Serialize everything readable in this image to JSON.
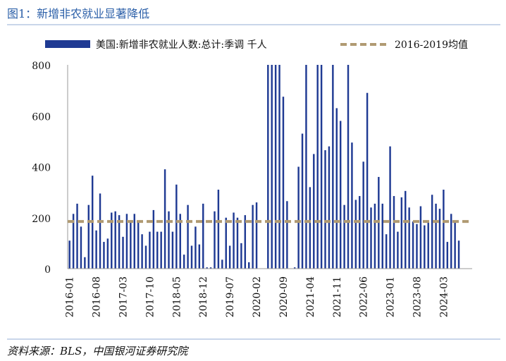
{
  "header": {
    "title": "图1：新增非农就业显著降低"
  },
  "footer": {
    "source": "资料来源：BLS，中国银河证券研究院"
  },
  "colors": {
    "bar": "#1f3a93",
    "avg": "#b09a72",
    "axis": "#999999",
    "title": "#2b5fa8"
  },
  "chart_data": {
    "type": "bar",
    "legend": {
      "placement": "top",
      "bar_label": "美国:新增非农就业人数:总计:季调 千人",
      "line_label": "2016-2019均值"
    },
    "ylim": [
      0,
      800
    ],
    "yticks": [
      0,
      200,
      400,
      600,
      800
    ],
    "xtick_labels": [
      "2016-01",
      "2016-08",
      "2017-03",
      "2017-10",
      "2018-05",
      "2018-12",
      "2019-07",
      "2020-02",
      "2020-09",
      "2021-04",
      "2021-11",
      "2022-06",
      "2023-01",
      "2023-08",
      "2024-03"
    ],
    "average": 185,
    "categories": [
      "2016-01",
      "2016-02",
      "2016-03",
      "2016-04",
      "2016-05",
      "2016-06",
      "2016-07",
      "2016-08",
      "2016-09",
      "2016-10",
      "2016-11",
      "2016-12",
      "2017-01",
      "2017-02",
      "2017-03",
      "2017-04",
      "2017-05",
      "2017-06",
      "2017-07",
      "2017-08",
      "2017-09",
      "2017-10",
      "2017-11",
      "2017-12",
      "2018-01",
      "2018-02",
      "2018-03",
      "2018-04",
      "2018-05",
      "2018-06",
      "2018-07",
      "2018-08",
      "2018-09",
      "2018-10",
      "2018-11",
      "2018-12",
      "2019-01",
      "2019-02",
      "2019-03",
      "2019-04",
      "2019-05",
      "2019-06",
      "2019-07",
      "2019-08",
      "2019-09",
      "2019-10",
      "2019-11",
      "2019-12",
      "2020-01",
      "2020-02",
      "2020-03",
      "2020-04",
      "2020-05",
      "2020-06",
      "2020-07",
      "2020-08",
      "2020-09",
      "2020-10",
      "2020-11",
      "2020-12",
      "2021-01",
      "2021-02",
      "2021-03",
      "2021-04",
      "2021-05",
      "2021-06",
      "2021-07",
      "2021-08",
      "2021-09",
      "2021-10",
      "2021-11",
      "2021-12",
      "2022-01",
      "2022-02",
      "2022-03",
      "2022-04",
      "2022-05",
      "2022-06",
      "2022-07",
      "2022-08",
      "2022-09",
      "2022-10",
      "2022-11",
      "2022-12",
      "2023-01",
      "2023-02",
      "2023-03",
      "2023-04",
      "2023-05",
      "2023-06",
      "2023-07",
      "2023-08",
      "2023-09",
      "2023-10",
      "2023-11",
      "2023-12",
      "2024-01",
      "2024-02",
      "2024-03",
      "2024-04",
      "2024-05",
      "2024-06",
      "2024-07",
      "2024-08",
      "2024-09",
      "2024-10"
    ],
    "values": [
      110,
      215,
      255,
      165,
      45,
      250,
      365,
      150,
      295,
      105,
      118,
      220,
      225,
      210,
      125,
      215,
      190,
      215,
      180,
      135,
      90,
      145,
      230,
      145,
      145,
      390,
      225,
      145,
      330,
      215,
      55,
      250,
      90,
      165,
      95,
      255,
      5,
      5,
      225,
      310,
      35,
      200,
      90,
      220,
      200,
      100,
      210,
      25,
      250,
      260,
      -5,
      -5,
      800,
      800,
      800,
      800,
      675,
      265,
      -5,
      5,
      400,
      530,
      800,
      320,
      450,
      800,
      800,
      465,
      480,
      800,
      630,
      580,
      250,
      800,
      495,
      270,
      285,
      420,
      690,
      240,
      255,
      360,
      255,
      135,
      480,
      285,
      145,
      280,
      305,
      240,
      185,
      175,
      245,
      170,
      185,
      290,
      255,
      235,
      310,
      105,
      215,
      180,
      110,
      0,
      0,
      0
    ]
  }
}
